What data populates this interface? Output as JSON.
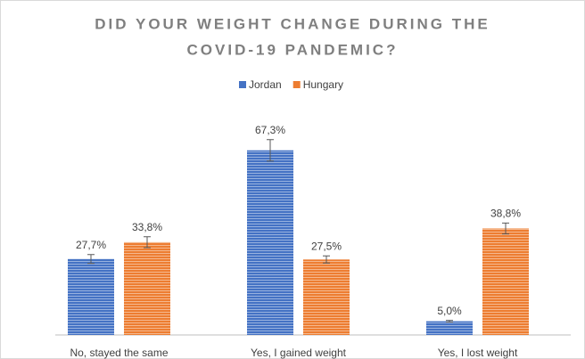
{
  "chart_data": {
    "type": "bar",
    "title": [
      "DID YOUR WEIGHT CHANGE DURING THE",
      "COVID-19 PANDEMIC?"
    ],
    "categories": [
      "No, stayed the same",
      "Yes, I gained weight",
      "Yes, I lost weight"
    ],
    "series": [
      {
        "name": "Jordan",
        "color": "#4472c4",
        "values": [
          27.7,
          67.3,
          5.0
        ],
        "errors": [
          1.6,
          3.9,
          0.3
        ],
        "value_labels": [
          "27,7%",
          "67,3%",
          "5,0%"
        ]
      },
      {
        "name": "Hungary",
        "color": "#ed7d31",
        "values": [
          33.8,
          27.5,
          38.8
        ],
        "errors": [
          2.0,
          1.3,
          2.0
        ],
        "value_labels": [
          "33,8%",
          "27,5%",
          "38,8%"
        ]
      }
    ]
  }
}
